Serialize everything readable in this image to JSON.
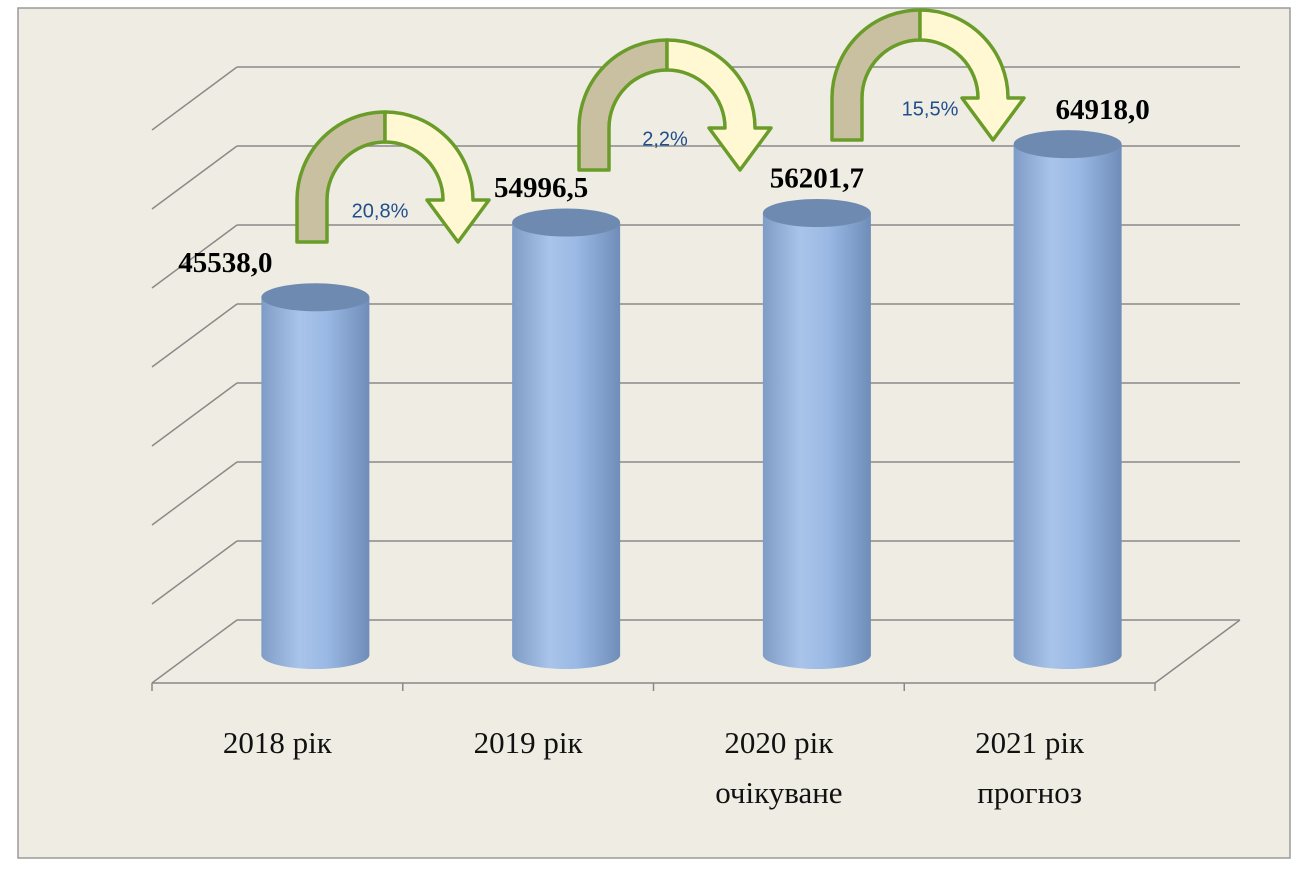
{
  "chart_data": {
    "type": "bar",
    "categories": [
      "2018 рік",
      "2019 рік",
      "2020 рік\nочікуване",
      "2021 рік\nпрогноз"
    ],
    "values": [
      45538.0,
      54996.5,
      56201.7,
      64918.0
    ],
    "value_labels": [
      "45538,0",
      "54996,5",
      "56201,7",
      "64918,0"
    ],
    "annotations": [
      "20,8%",
      "2,2%",
      "15,5%"
    ],
    "color": "#8eaedc",
    "ylim": [
      0,
      70000
    ],
    "yticks": [
      0,
      10000,
      20000,
      30000,
      40000,
      50000,
      60000,
      70000
    ],
    "grid": true
  }
}
